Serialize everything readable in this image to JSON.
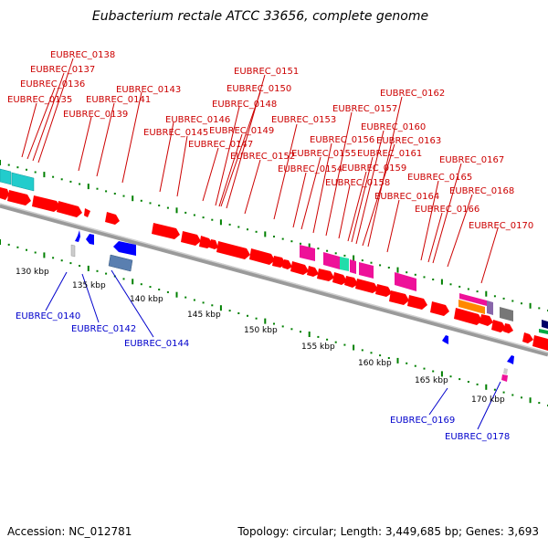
{
  "title": "Eubacterium rectale ATCC 33656, complete genome",
  "accession": "Accession: NC_012781",
  "topology": "Topology: circular; Length: 3,449,685 bp; Genes: 3,693",
  "colors": {
    "forward_gene": "#ff0000",
    "reverse_gene": "#0000ff",
    "forward_label": "#cc0000",
    "reverse_label": "#0000cc",
    "gc_skew_dots": "#008000",
    "backbone": "#808080",
    "magenta_feature": "#ee1199",
    "teal_feature": "#22cccc",
    "steel_feature": "#5a7fb0"
  },
  "kbp_ticks": [
    "130 kbp",
    "135 kbp",
    "140 kbp",
    "145 kbp",
    "150 kbp",
    "155 kbp",
    "160 kbp",
    "165 kbp",
    "170 kbp"
  ],
  "forward_labels": [
    "EUBREC_0138",
    "EUBREC_0137",
    "EUBREC_0136",
    "EUBREC_0135",
    "EUBREC_0141",
    "EUBREC_0139",
    "EUBREC_0143",
    "EUBREC_0146",
    "EUBREC_0145",
    "EUBREC_0151",
    "EUBREC_0150",
    "EUBREC_0148",
    "EUBREC_0149",
    "EUBREC_0147",
    "EUBREC_0153",
    "EUBREC_0152",
    "EUBREC_0162",
    "EUBREC_0157",
    "EUBREC_0160",
    "EUBREC_0156",
    "EUBREC_0163",
    "EUBREC_0155",
    "EUBREC_0161",
    "EUBREC_0154",
    "EUBREC_0159",
    "EUBREC_0158",
    "EUBREC_0167",
    "EUBREC_0165",
    "EUBREC_0168",
    "EUBREC_0164",
    "EUBREC_0166",
    "EUBREC_0170"
  ],
  "reverse_labels": [
    "EUBREC_0140",
    "EUBREC_0142",
    "EUBREC_0144",
    "EUBREC_0169",
    "EUBREC_0178"
  ]
}
